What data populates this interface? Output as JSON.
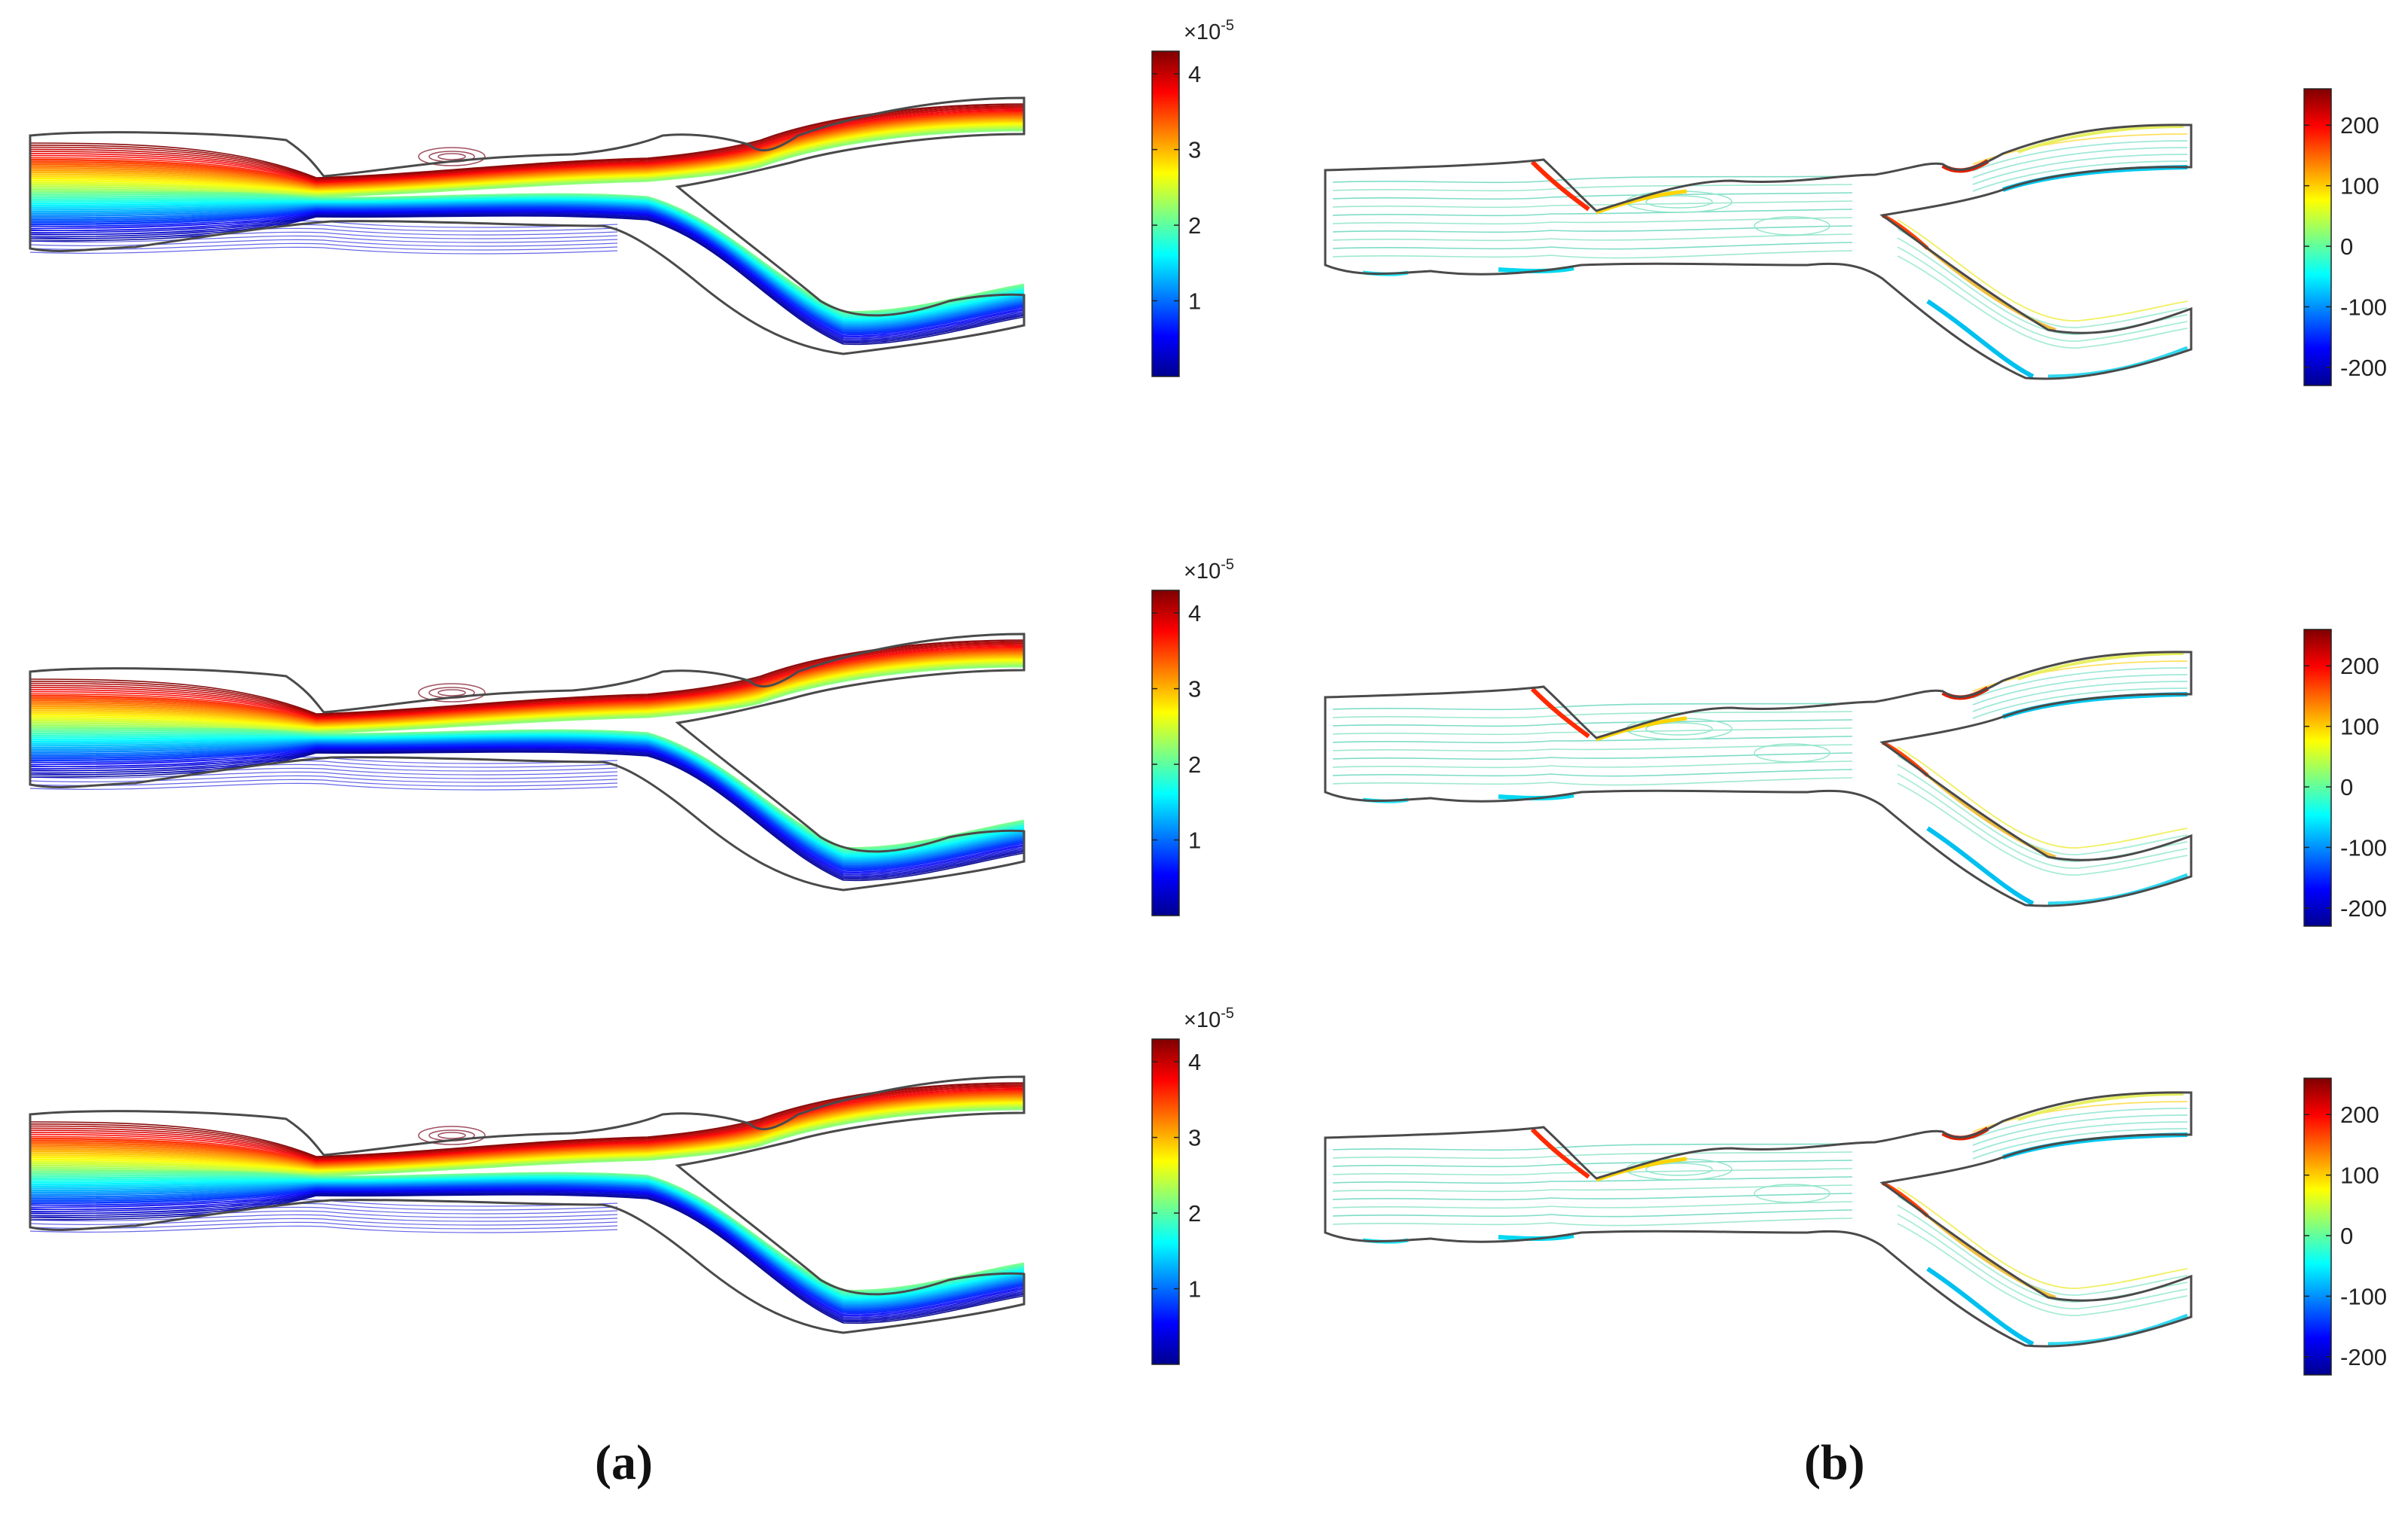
{
  "figure": {
    "panel_labels": [
      "(a)",
      "(b)"
    ],
    "colors": {
      "jet": [
        "#00008f",
        "#0000ff",
        "#0080ff",
        "#00ffff",
        "#80ff80",
        "#ffff00",
        "#ff8000",
        "#ff0000",
        "#800000"
      ],
      "outline": "#4a4a4a"
    },
    "left_colorbar": {
      "exponent_prefix": "×10",
      "exponent_power": "-5",
      "ticks": [
        "4",
        "3",
        "2",
        "1"
      ],
      "tick_values": [
        4,
        3,
        2,
        1
      ],
      "range": [
        0,
        4.3
      ]
    },
    "right_colorbar": {
      "ticks": [
        "200",
        "100",
        "0",
        "-100",
        "-200"
      ],
      "tick_values": [
        200,
        100,
        0,
        -100,
        -200
      ],
      "range": [
        -230,
        260
      ]
    },
    "rows": [
      {
        "index": 1
      },
      {
        "index": 2
      },
      {
        "index": 3
      }
    ]
  }
}
